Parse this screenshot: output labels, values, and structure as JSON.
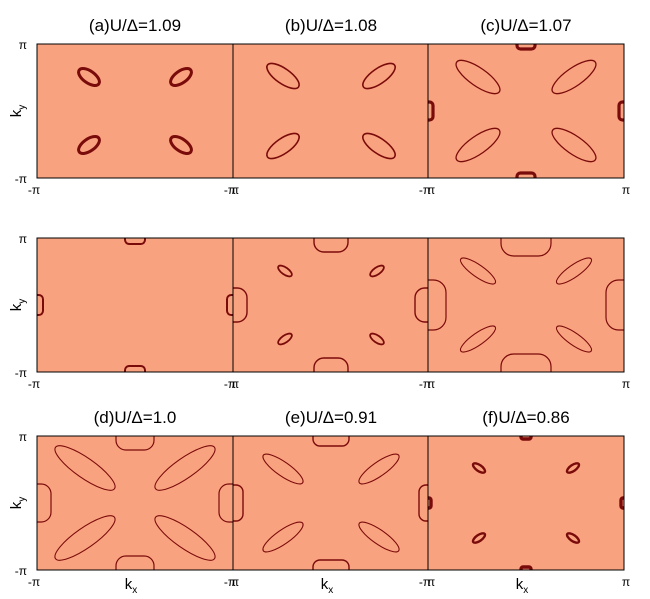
{
  "figure": {
    "colors": {
      "background": "#f9a27f",
      "contour": "#7a0b0b",
      "frame": "#000000"
    },
    "xlabel_base": "k",
    "xlabel_sub": "x",
    "ylabel_base": "k",
    "ylabel_sub": "y",
    "tick_min": "-π",
    "tick_max": "π",
    "panels": [
      {
        "id": "a",
        "title": "(a)U/Δ=1.09",
        "row": 0,
        "col": 0
      },
      {
        "id": "b",
        "title": "(b)U/Δ=1.08",
        "row": 0,
        "col": 1
      },
      {
        "id": "c",
        "title": "(c)U/Δ=1.07",
        "row": 0,
        "col": 2
      },
      {
        "id": "m1",
        "title": "",
        "row": 1,
        "col": 0
      },
      {
        "id": "m2",
        "title": "",
        "row": 1,
        "col": 1
      },
      {
        "id": "m3",
        "title": "",
        "row": 1,
        "col": 2
      },
      {
        "id": "d",
        "title": "(d)U/Δ=1.0",
        "row": 2,
        "col": 0
      },
      {
        "id": "e",
        "title": "(e)U/Δ=0.91",
        "row": 2,
        "col": 1
      },
      {
        "id": "f",
        "title": "(f)U/Δ=0.86",
        "row": 2,
        "col": 2
      }
    ]
  }
}
